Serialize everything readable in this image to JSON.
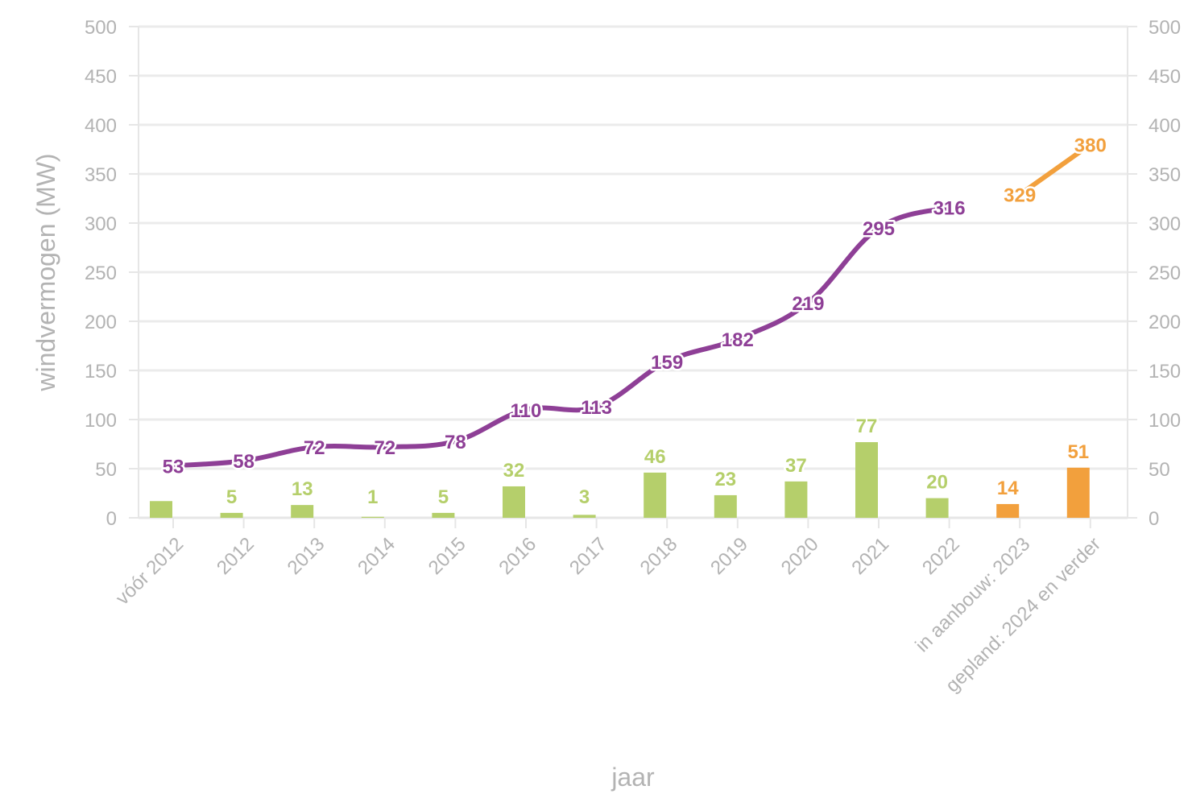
{
  "chart_data": {
    "type": "bar",
    "title": "",
    "xlabel": "jaar",
    "ylabel": "windvermogen (MW)",
    "ylim": [
      0,
      500
    ],
    "y_ticks": [
      0,
      50,
      100,
      150,
      200,
      250,
      300,
      350,
      400,
      450,
      500
    ],
    "secondary_y_axis": true,
    "grid": true,
    "legend": "none",
    "categories": [
      "vóór 2012",
      "2012",
      "2013",
      "2014",
      "2015",
      "2016",
      "2017",
      "2018",
      "2019",
      "2020",
      "2021",
      "2022",
      "in aanbouw: 2023",
      "gepland: 2024 en verder"
    ],
    "series": [
      {
        "kind": "bar",
        "color": "#b5cf6b",
        "values": [
          17,
          5,
          13,
          1,
          5,
          32,
          3,
          46,
          23,
          37,
          77,
          20,
          null,
          null
        ],
        "labels": [
          "",
          "5",
          "13",
          "1",
          "5",
          "32",
          "3",
          "46",
          "23",
          "37",
          "77",
          "20",
          "",
          ""
        ]
      },
      {
        "kind": "bar",
        "color": "#f2a03d",
        "values": [
          null,
          null,
          null,
          null,
          null,
          null,
          null,
          null,
          null,
          null,
          null,
          null,
          14,
          51
        ],
        "labels": [
          "",
          "",
          "",
          "",
          "",
          "",
          "",
          "",
          "",
          "",
          "",
          "",
          "14",
          "51"
        ]
      },
      {
        "kind": "line",
        "color": "#8e3f96",
        "values": [
          53,
          58,
          72,
          72,
          78,
          110,
          113,
          159,
          182,
          219,
          295,
          316,
          null,
          null
        ],
        "labels": [
          "53",
          "58",
          "72",
          "72",
          "78",
          "110",
          "113",
          "159",
          "182",
          "219",
          "295",
          "316",
          "",
          ""
        ]
      },
      {
        "kind": "line",
        "color": "#f2a03d",
        "values": [
          null,
          null,
          null,
          null,
          null,
          null,
          null,
          null,
          null,
          null,
          null,
          null,
          329,
          380
        ],
        "labels": [
          "",
          "",
          "",
          "",
          "",
          "",
          "",
          "",
          "",
          "",
          "",
          "",
          "329",
          "380"
        ]
      }
    ]
  }
}
